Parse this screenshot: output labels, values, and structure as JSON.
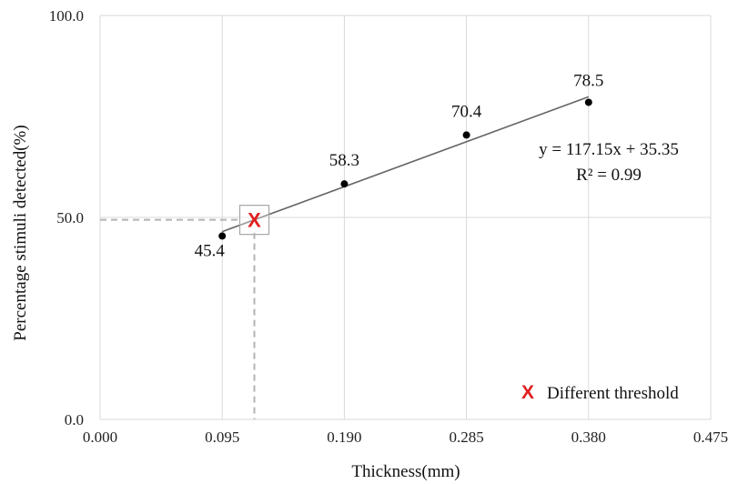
{
  "chart_data": {
    "type": "scatter",
    "xlabel": "Thickness(mm)",
    "ylabel": "Percentage stimuli detected(%)",
    "xlim": [
      0,
      0.475
    ],
    "ylim": [
      0,
      100
    ],
    "x_ticks": [
      "0.000",
      "0.095",
      "0.190",
      "0.285",
      "0.380",
      "0.475"
    ],
    "y_ticks": [
      "0.0",
      "50.0",
      "100.0"
    ],
    "grid": "vertical and horizontal gridlines",
    "series": [
      {
        "x": [
          0.095,
          0.19,
          0.285,
          0.38
        ],
        "y": [
          45.4,
          58.3,
          70.4,
          78.5
        ],
        "labels": [
          "45.4",
          "58.3",
          "70.4",
          "78.5"
        ]
      }
    ],
    "trendline": {
      "type": "linear",
      "slope": 117.15,
      "intercept": 35.35,
      "x_range": [
        0.095,
        0.38
      ],
      "equation": "y = 117.15x + 35.35",
      "r_squared": "R² = 0.99"
    },
    "threshold": {
      "x": 0.12,
      "y": 49.4,
      "marker": "X",
      "legend_label": "Different threshold",
      "color": "#e02020",
      "guide_style": "dashed"
    },
    "legend": "bottom-right",
    "colors": {
      "points": "#000000",
      "trendline": "#666666",
      "gridlines": "#d9d9d9",
      "guide_lines": "#b3b3b3",
      "marker": "#e02020"
    }
  }
}
